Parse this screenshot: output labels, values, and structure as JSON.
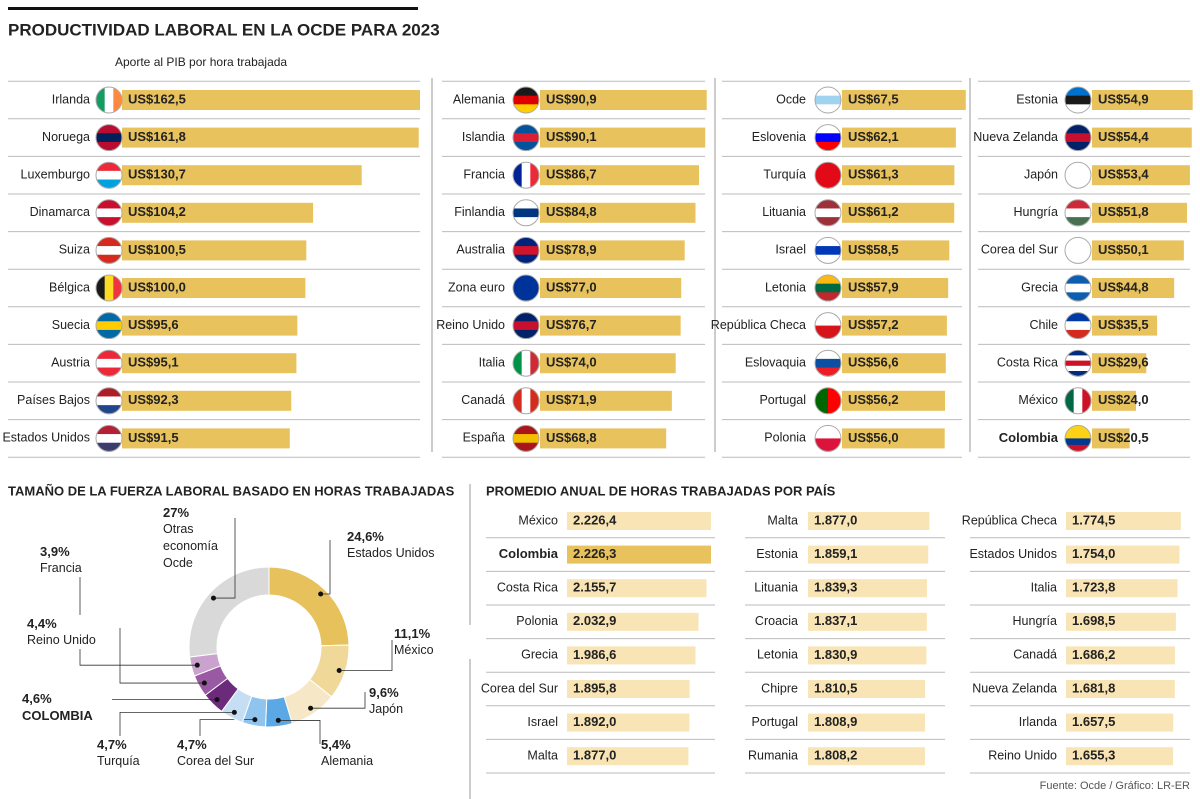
{
  "title": "PRODUCTIVIDAD LABORAL EN LA OCDE PARA 2023",
  "source": "Fuente: Ocde / Gráfico: LR-ER",
  "chart_data": [
    {
      "type": "bar",
      "subtitle": "Aporte al PIB por hora trabajada",
      "color": "#e8c25d",
      "highlight": "Colombia",
      "categories": [
        "Irlanda",
        "Noruega",
        "Luxemburgo",
        "Dinamarca",
        "Suiza",
        "Bélgica",
        "Suecia",
        "Austria",
        "Países Bajos",
        "Estados Unidos",
        "Alemania",
        "Islandia",
        "Francia",
        "Finlandia",
        "Australia",
        "Zona euro",
        "Reino Unido",
        "Italia",
        "Canadá",
        "España",
        "Ocde",
        "Eslovenia",
        "Turquía",
        "Lituania",
        "Israel",
        "Letonia",
        "República Checa",
        "Eslovaquia",
        "Portugal",
        "Polonia",
        "Estonia",
        "Nueva Zelanda",
        "Japón",
        "Hungría",
        "Corea del Sur",
        "Grecia",
        "Chile",
        "Costa Rica",
        "México",
        "Colombia"
      ],
      "values": [
        162.5,
        161.8,
        130.7,
        104.2,
        100.5,
        100.0,
        95.6,
        95.1,
        92.3,
        91.5,
        90.9,
        90.1,
        86.7,
        84.8,
        78.9,
        77.0,
        76.7,
        74.0,
        71.9,
        68.8,
        67.5,
        62.1,
        61.3,
        61.2,
        58.5,
        57.9,
        57.2,
        56.6,
        56.2,
        56.0,
        54.9,
        54.4,
        53.4,
        51.8,
        50.1,
        44.8,
        35.5,
        29.6,
        24.0,
        20.5
      ],
      "value_labels": [
        "US$162,5",
        "US$161,8",
        "US$130,7",
        "US$104,2",
        "US$100,5",
        "US$100,0",
        "US$95,6",
        "US$95,1",
        "US$92,3",
        "US$91,5",
        "US$90,9",
        "US$90,1",
        "US$86,7",
        "US$84,8",
        "US$78,9",
        "US$77,0",
        "US$76,7",
        "US$74,0",
        "US$71,9",
        "US$68,8",
        "US$67,5",
        "US$62,1",
        "US$61,3",
        "US$61,2",
        "US$58,5",
        "US$57,9",
        "US$57,2",
        "US$56,6",
        "US$56,2",
        "US$56,0",
        "US$54,9",
        "US$54,4",
        "US$53,4",
        "US$51,8",
        "US$50,1",
        "US$44,8",
        "US$35,5",
        "US$29,6",
        "US$24,0",
        "US$20,5"
      ],
      "flags": [
        [
          "v",
          "#169b62",
          "#ffffff",
          "#ff883e"
        ],
        [
          "h",
          "#ba0c2f",
          "#00205b",
          "#ba0c2f"
        ],
        [
          "h",
          "#ed2939",
          "#ffffff",
          "#00a1de"
        ],
        [
          "h",
          "#c8102e",
          "#ffffff",
          "#c8102e"
        ],
        [
          "h",
          "#d52b1e",
          "#ffffff",
          "#d52b1e"
        ],
        [
          "v",
          "#1a1a1a",
          "#fdda24",
          "#ef3340"
        ],
        [
          "h",
          "#006aa7",
          "#fecc00",
          "#006aa7"
        ],
        [
          "h",
          "#ed2939",
          "#ffffff",
          "#ed2939"
        ],
        [
          "h",
          "#ae1c28",
          "#ffffff",
          "#21468b"
        ],
        [
          "h",
          "#b22234",
          "#ffffff",
          "#3c3b6e"
        ],
        [
          "h",
          "#1a1a1a",
          "#dd0000",
          "#ffce00"
        ],
        [
          "h",
          "#02529c",
          "#dc1e35",
          "#02529c"
        ],
        [
          "v",
          "#002395",
          "#ffffff",
          "#ed2939"
        ],
        [
          "h",
          "#ffffff",
          "#003580",
          "#ffffff"
        ],
        [
          "h",
          "#00247d",
          "#cf142b",
          "#00247d"
        ],
        [
          "h",
          "#003399"
        ],
        [
          "h",
          "#012169",
          "#c8102e",
          "#012169"
        ],
        [
          "v",
          "#009246",
          "#ffffff",
          "#ce2b37"
        ],
        [
          "v",
          "#d52b1e",
          "#ffffff",
          "#d52b1e"
        ],
        [
          "h",
          "#aa151b",
          "#f1bf00",
          "#aa151b"
        ],
        [
          "h",
          "#ffffff",
          "#9fd3ef",
          "#ffffff"
        ],
        [
          "h",
          "#ffffff",
          "#0000ff",
          "#ff0000"
        ],
        [
          "h",
          "#e30a17"
        ],
        [
          "h",
          "#9e3039",
          "#ffffff",
          "#9e3039"
        ],
        [
          "h",
          "#ffffff",
          "#0038b8",
          "#ffffff"
        ],
        [
          "h",
          "#fdb913",
          "#006a44",
          "#c1272d"
        ],
        [
          "h",
          "#ffffff",
          "#d7141a"
        ],
        [
          "h",
          "#ffffff",
          "#0b4ea2",
          "#ee1c25"
        ],
        [
          "v",
          "#006600",
          "#ff0000"
        ],
        [
          "h",
          "#ffffff",
          "#dc143c"
        ],
        [
          "h",
          "#0072ce",
          "#1a1a1a",
          "#ffffff"
        ],
        [
          "h",
          "#012169",
          "#c8102e",
          "#012169"
        ],
        [
          "h",
          "#ffffff"
        ],
        [
          "h",
          "#ce2939",
          "#ffffff",
          "#477050"
        ],
        [
          "h",
          "#ffffff"
        ],
        [
          "h",
          "#0d5eaf",
          "#ffffff",
          "#0d5eaf"
        ],
        [
          "h",
          "#0039a6",
          "#ffffff",
          "#d52b1e"
        ],
        [
          "h",
          "#002b7f",
          "#ffffff",
          "#ce1126",
          "#ffffff",
          "#002b7f"
        ],
        [
          "v",
          "#006847",
          "#ffffff",
          "#ce1126"
        ],
        [
          "h",
          "#fcd116",
          "#fcd116",
          "#003893",
          "#ce1126"
        ]
      ]
    },
    {
      "type": "pie",
      "title": "TAMAÑO DE LA FUERZA LABORAL BASADO EN HORAS TRABAJADAS",
      "highlight": "COLOMBIA",
      "categories": [
        "Estados Unidos",
        "México",
        "Japón",
        "Alemania",
        "Corea del Sur",
        "Turquía",
        "COLOMBIA",
        "Reino Unido",
        "Francia",
        "Otras economía Ocde"
      ],
      "values": [
        24.6,
        11.1,
        9.6,
        5.4,
        4.7,
        4.7,
        4.6,
        4.4,
        3.9,
        27
      ],
      "value_labels": [
        "24,6%",
        "11,1%",
        "9,6%",
        "5,4%",
        "4,7%",
        "4,7%",
        "4,6%",
        "4,4%",
        "3,9%",
        "27%"
      ],
      "colors": [
        "#e6c15c",
        "#f0d898",
        "#f6e8c6",
        "#5aa9e6",
        "#8ec4ee",
        "#c5def3",
        "#6b2a7a",
        "#9a5aa3",
        "#c9a2cd",
        "#d9d9d9"
      ]
    },
    {
      "type": "bar",
      "title": "PROMEDIO ANUAL DE HORAS TRABAJADAS POR PAÍS",
      "color": "#f8e4b4",
      "highlight": "Colombia",
      "highlight_color": "#e8c25d",
      "categories": [
        "México",
        "Colombia",
        "Costa Rica",
        "Polonia",
        "Grecia",
        "Corea del Sur",
        "Israel",
        "Malta",
        "Malta",
        "Estonia",
        "Lituania",
        "Croacia",
        "Letonia",
        "Chipre",
        "Portugal",
        "Rumania",
        "República Checa",
        "Estados Unidos",
        "Italia",
        "Hungría",
        "Canadá",
        "Nueva Zelanda",
        "Irlanda",
        "Reino Unido"
      ],
      "values": [
        2226.4,
        2226.3,
        2155.7,
        2032.9,
        1986.6,
        1895.8,
        1892.0,
        1877.0,
        1877.0,
        1859.1,
        1839.3,
        1837.1,
        1830.9,
        1810.5,
        1808.9,
        1808.2,
        1774.5,
        1754.0,
        1723.8,
        1698.5,
        1686.2,
        1681.8,
        1657.5,
        1655.3
      ],
      "value_labels": [
        "2.226,4",
        "2.226,3",
        "2.155,7",
        "2.032,9",
        "1.986,6",
        "1.895,8",
        "1.892,0",
        "1.877,0",
        "1.877,0",
        "1.859,1",
        "1.839,3",
        "1.837,1",
        "1.830,9",
        "1.810,5",
        "1.808,9",
        "1.808,2",
        "1.774,5",
        "1.754,0",
        "1.723,8",
        "1.698,5",
        "1.686,2",
        "1.681,8",
        "1.657,5",
        "1.655,3"
      ]
    }
  ]
}
